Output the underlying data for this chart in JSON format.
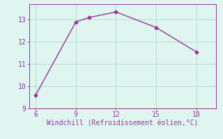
{
  "x": [
    6,
    9,
    10,
    12,
    15,
    18
  ],
  "y": [
    9.6,
    12.9,
    13.1,
    13.35,
    12.65,
    11.55
  ],
  "line_color": "#993399",
  "marker": "D",
  "marker_size": 2.5,
  "background_color": "#dff5f0",
  "grid_color": "#b0d8cc",
  "xlabel": "Windchill (Refroidissement éolien,°C)",
  "xlabel_color": "#993399",
  "xlabel_fontsize": 7,
  "tick_color": "#993399",
  "tick_fontsize": 7,
  "xlim": [
    5.5,
    19.5
  ],
  "ylim": [
    9.0,
    13.7
  ],
  "xticks": [
    6,
    9,
    12,
    15,
    18
  ],
  "yticks": [
    9,
    10,
    11,
    12,
    13
  ],
  "line_width": 1.0,
  "font_family": "monospace"
}
